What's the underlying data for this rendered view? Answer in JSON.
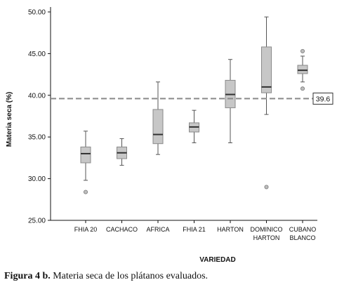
{
  "chart_data": {
    "type": "boxplot",
    "xlabel": "VARIEDAD",
    "ylabel": "Materia seca (%)",
    "ylim": [
      25.0,
      50.0
    ],
    "yticks": [
      "25.00",
      "30.00",
      "35.00",
      "40.00",
      "45.00",
      "50.00"
    ],
    "reference_line": {
      "value": 39.6,
      "label": "39.6"
    },
    "categories": [
      {
        "label_lines": [
          "FHIA 20"
        ],
        "min": 29.8,
        "q1": 31.9,
        "median": 33.0,
        "q3": 33.8,
        "max": 35.7,
        "outliers": [
          28.4
        ]
      },
      {
        "label_lines": [
          "CACHACO"
        ],
        "min": 31.6,
        "q1": 32.4,
        "median": 33.1,
        "q3": 33.8,
        "max": 34.8,
        "outliers": []
      },
      {
        "label_lines": [
          "AFRICA"
        ],
        "min": 32.9,
        "q1": 34.2,
        "median": 35.3,
        "q3": 38.3,
        "max": 41.6,
        "outliers": []
      },
      {
        "label_lines": [
          "FHIA 21"
        ],
        "min": 34.3,
        "q1": 35.6,
        "median": 36.2,
        "q3": 36.7,
        "max": 38.2,
        "outliers": []
      },
      {
        "label_lines": [
          "HARTON"
        ],
        "min": 34.3,
        "q1": 38.5,
        "median": 40.1,
        "q3": 41.8,
        "max": 44.3,
        "outliers": []
      },
      {
        "label_lines": [
          "DOMINICO",
          "HARTON"
        ],
        "min": 37.7,
        "q1": 40.3,
        "median": 41.0,
        "q3": 45.8,
        "max": 49.4,
        "outliers": [
          29.0
        ]
      },
      {
        "label_lines": [
          "CUBANO",
          "BLANCO"
        ],
        "min": 41.6,
        "q1": 42.6,
        "median": 43.0,
        "q3": 43.6,
        "max": 44.7,
        "outliers": [
          45.3,
          40.8
        ]
      }
    ],
    "colors": {
      "box_fill": "#c7c7c7",
      "box_stroke": "#8a8a8a",
      "median": "#333333",
      "whisker": "#555555",
      "ref_line": "#888888"
    }
  },
  "caption": {
    "bold": "Figura 4 b.",
    "text": " Materia seca de los plátanos evaluados."
  }
}
